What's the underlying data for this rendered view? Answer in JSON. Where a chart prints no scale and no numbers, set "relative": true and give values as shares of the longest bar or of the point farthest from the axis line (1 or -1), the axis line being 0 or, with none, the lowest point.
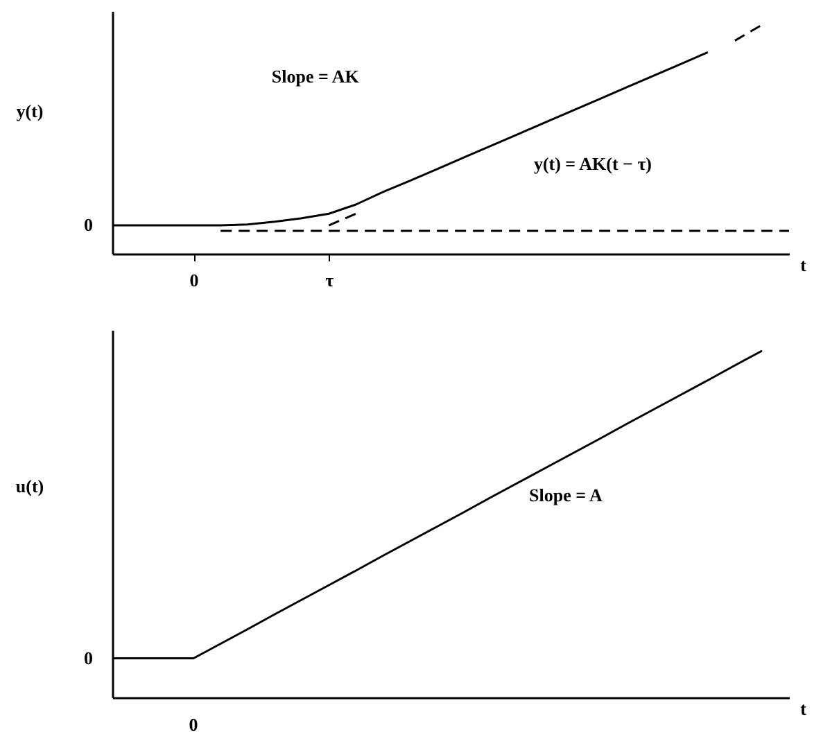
{
  "chart_data": [
    {
      "type": "line",
      "ylabel": "y(t)",
      "xlabel": "t",
      "relative": true,
      "categories": [
        null,
        null,
        null,
        "0",
        null,
        null,
        null,
        null,
        "τ",
        null,
        null,
        null,
        null,
        null,
        null,
        null,
        null,
        null,
        null,
        null,
        null,
        null,
        null,
        null,
        null,
        null
      ],
      "series": [
        {
          "color": "#000000",
          "line_style": "solid",
          "values": [
            0.124,
            0.124,
            0.124,
            0.124,
            0.124,
            0.128,
            0.14,
            0.155,
            0.175,
            0.215,
            0.27,
            0.319,
            0.37,
            0.421,
            0.472,
            0.523,
            0.574,
            0.625,
            0.676,
            0.727,
            0.778,
            0.829,
            0.88,
            null,
            null,
            null
          ]
        },
        {
          "color": "#000000",
          "line_style": "dashed",
          "values": [
            null,
            null,
            null,
            null,
            null,
            null,
            null,
            null,
            null,
            null,
            null,
            null,
            null,
            null,
            null,
            null,
            null,
            null,
            null,
            null,
            null,
            null,
            null,
            0.931,
            1.0,
            null
          ]
        },
        {
          "color": "#000000",
          "line_style": "dashed",
          "values": [
            null,
            null,
            null,
            null,
            null,
            null,
            null,
            null,
            0.124,
            0.175,
            null,
            null,
            null,
            null,
            null,
            null,
            null,
            null,
            null,
            null,
            null,
            null,
            null,
            null,
            null,
            null
          ]
        },
        {
          "color": "#000000",
          "line_style": "dashed",
          "values": [
            null,
            null,
            null,
            null,
            0.1,
            0.1,
            0.1,
            0.1,
            0.1,
            0.1,
            0.1,
            0.1,
            0.1,
            0.1,
            0.1,
            0.1,
            0.1,
            0.1,
            0.1,
            0.1,
            0.1,
            0.1,
            0.1,
            0.1,
            0.1,
            0.1
          ]
        }
      ],
      "annotations": [
        "Slope = AK",
        "y(t) = AK(t − τ)",
        "0"
      ]
    },
    {
      "type": "line",
      "ylabel": "u(t)",
      "xlabel": "t",
      "relative": true,
      "categories": [
        null,
        null,
        null,
        null,
        null,
        null,
        null,
        null,
        null,
        null,
        null,
        null,
        null,
        null,
        null,
        null,
        null,
        null,
        null,
        null,
        null,
        null,
        null,
        null,
        null,
        null
      ],
      "series": [
        {
          "color": "#000000",
          "line_style": "solid",
          "values": [
            0.113,
            0.113,
            0.113,
            0.113,
            0.155,
            0.197,
            0.24,
            0.282,
            0.324,
            0.366,
            0.409,
            0.451,
            0.493,
            0.535,
            0.578,
            0.62,
            0.662,
            0.704,
            0.746,
            0.789,
            0.831,
            0.873,
            0.915,
            0.958,
            1.0,
            null
          ]
        }
      ],
      "annotations": [
        "Slope = A",
        "0",
        "0"
      ]
    }
  ]
}
